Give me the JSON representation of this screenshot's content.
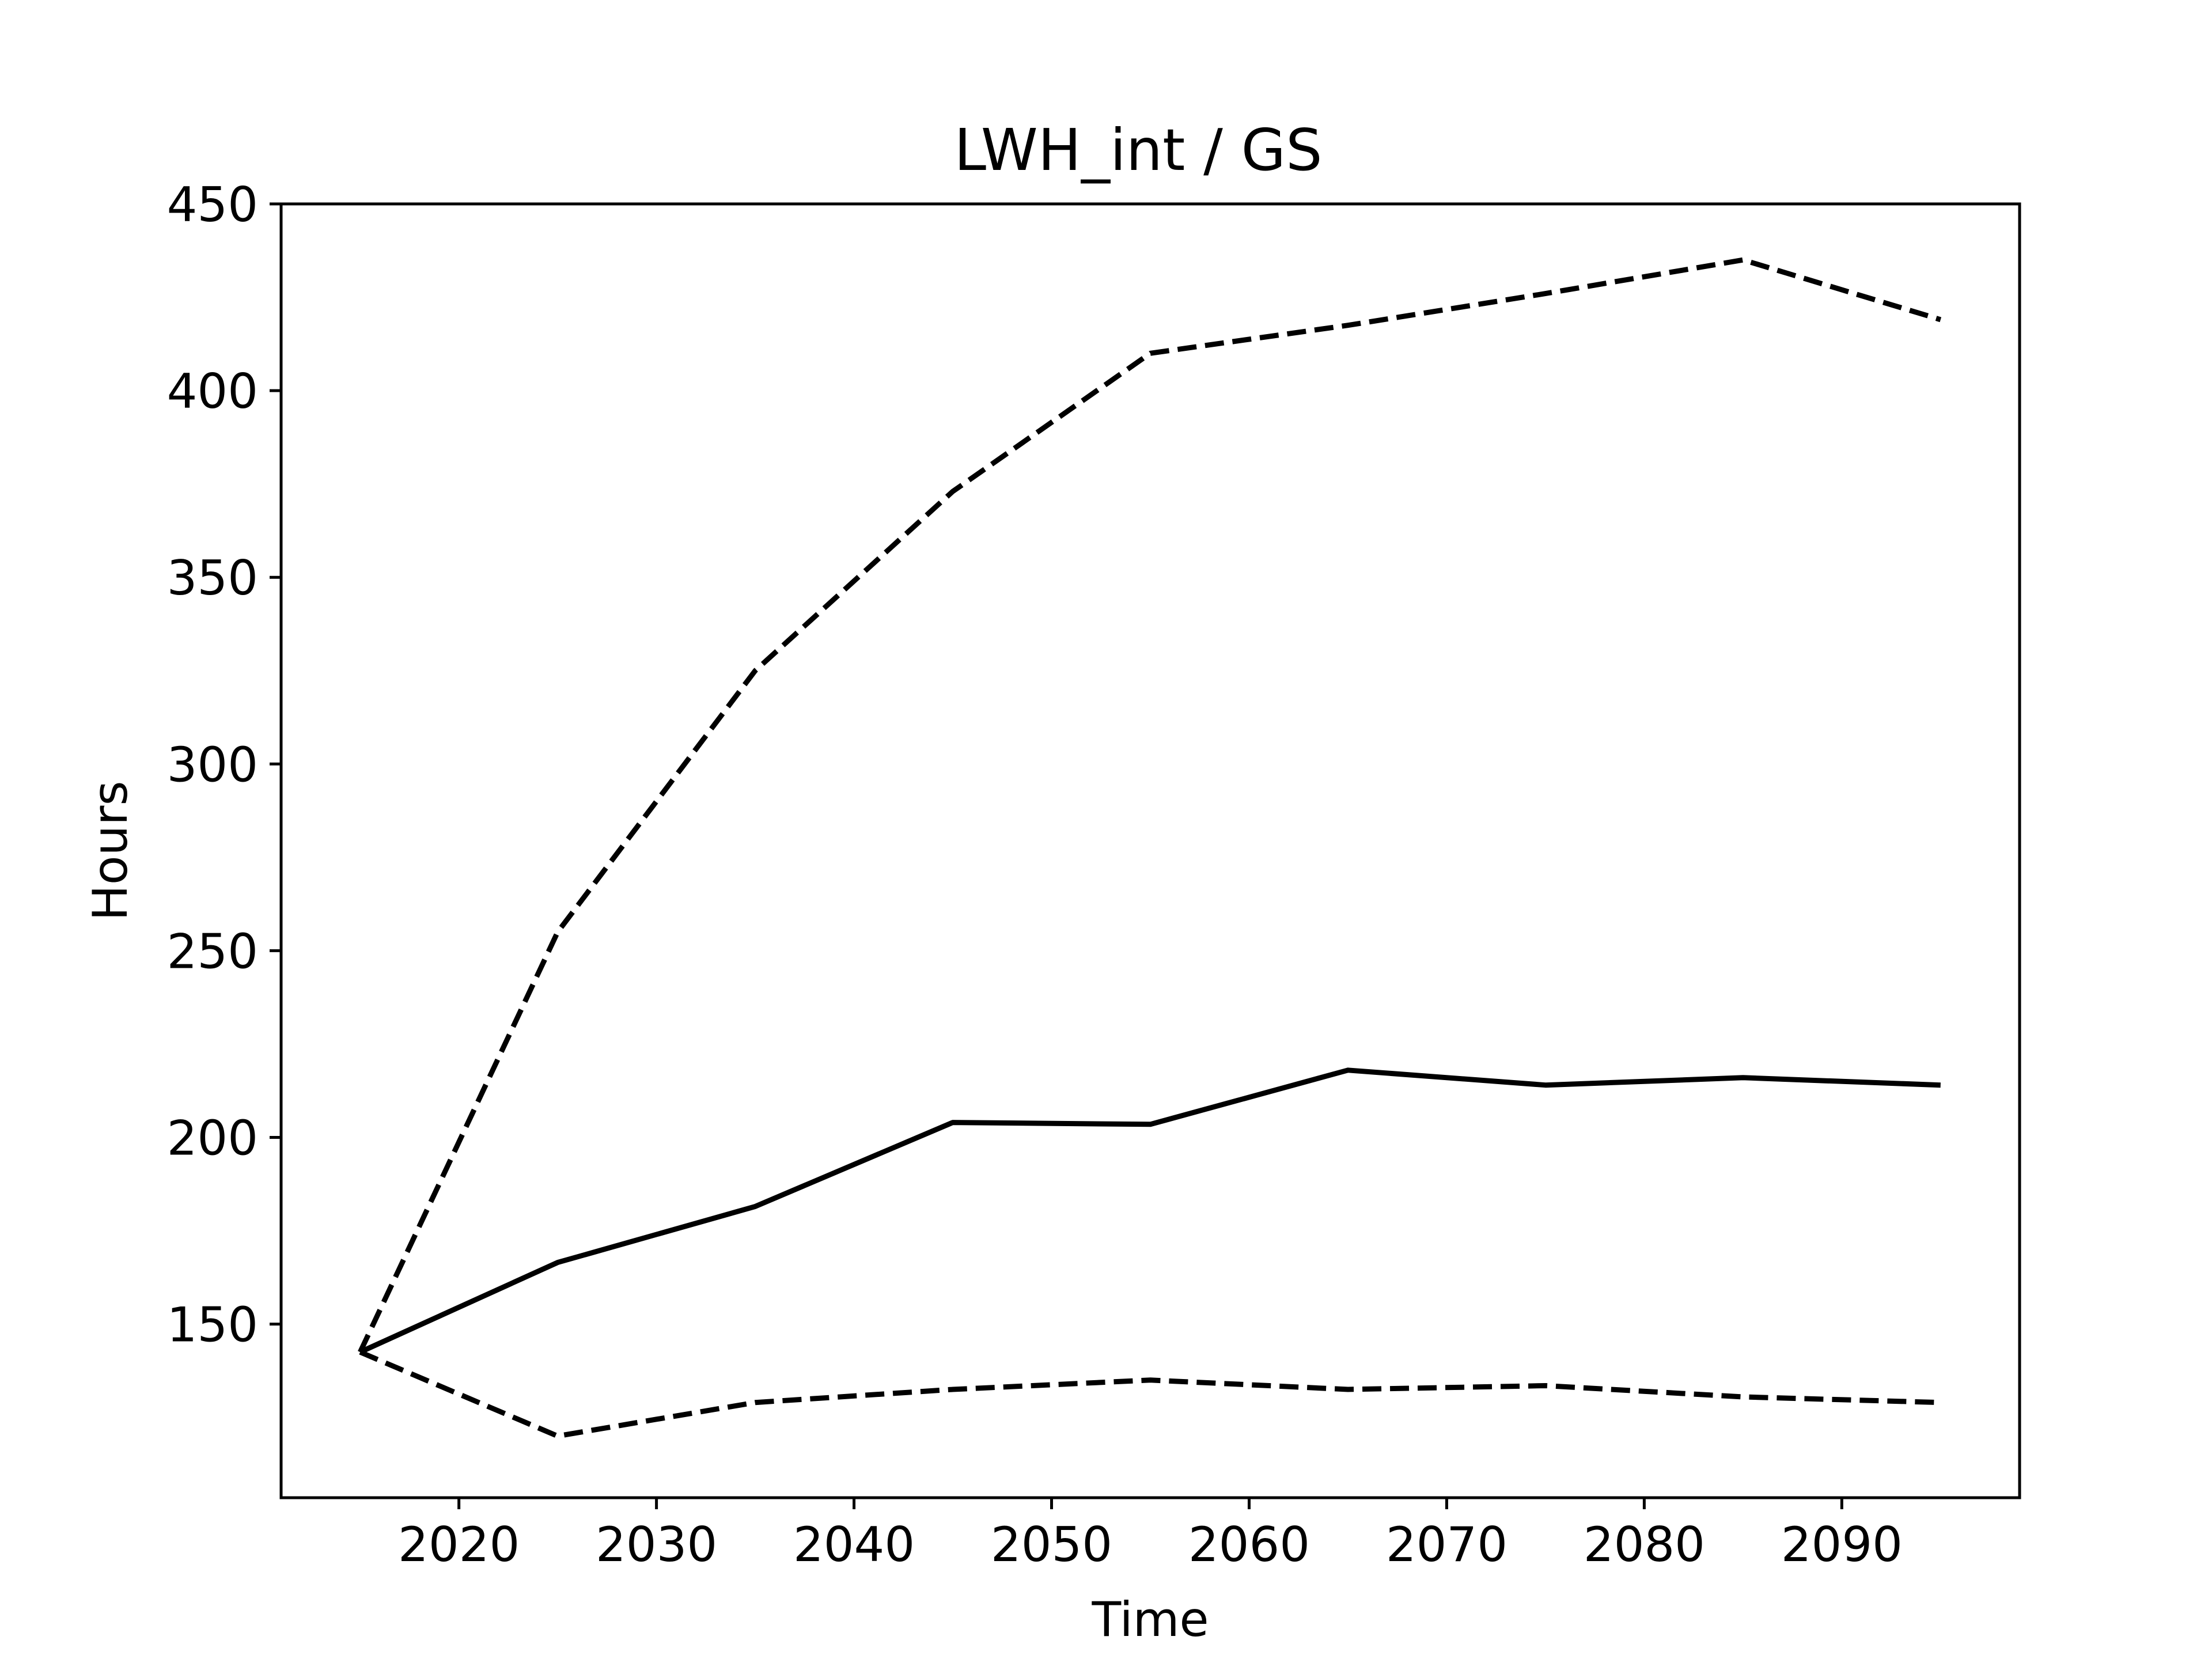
{
  "chart_data": {
    "type": "line",
    "title": "LWH_int / GS",
    "xlabel": "Time",
    "ylabel": "Hours",
    "x": [
      2015,
      2025,
      2035,
      2045,
      2055,
      2065,
      2075,
      2085,
      2095
    ],
    "series": [
      {
        "style": "solid",
        "values": [
          142.5,
          166.5,
          181.5,
          204,
          203.5,
          218,
          214,
          216,
          214
        ]
      },
      {
        "style": "dashed",
        "values": [
          142.5,
          255,
          325,
          373,
          410,
          417.5,
          426,
          435,
          419
        ]
      },
      {
        "style": "dashed",
        "values": [
          142.5,
          120,
          129,
          132.5,
          135,
          132.5,
          133.5,
          130.5,
          129
        ]
      }
    ],
    "xticks": [
      "2020",
      "2030",
      "2040",
      "2050",
      "2060",
      "2070",
      "2080",
      "2090"
    ],
    "xtick_values": [
      2020,
      2030,
      2040,
      2050,
      2060,
      2070,
      2080,
      2090
    ],
    "yticks": [
      "150",
      "200",
      "250",
      "300",
      "350",
      "400",
      "450"
    ],
    "ytick_values": [
      150,
      200,
      250,
      300,
      350,
      400,
      450
    ],
    "xlim": [
      2011,
      2099
    ],
    "ylim": [
      103.5,
      450
    ],
    "grid": false,
    "line_color": "#000000"
  }
}
